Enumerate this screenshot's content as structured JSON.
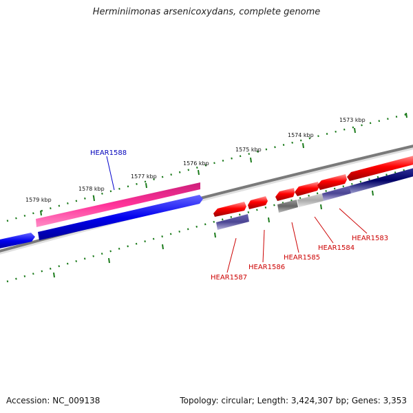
{
  "title": "Herminiimonas arsenicoxydans, complete genome",
  "footer": {
    "accession": "Accession: NC_009138",
    "summary": "Topology: circular; Length: 3,424,307 bp; Genes: 3,353"
  },
  "kbp_labels": [
    "1579 kbp",
    "1578 kbp",
    "1577 kbp",
    "1576 kbp",
    "1575 kbp",
    "1574 kbp",
    "1573 kbp"
  ],
  "gene_labels": {
    "hear1588": "HEAR1588",
    "hear1587": "HEAR1587",
    "hear1586": "HEAR1586",
    "hear1585": "HEAR1585",
    "hear1584": "HEAR1584",
    "hear1583": "HEAR1583"
  },
  "colors": {
    "red": "#dd0000",
    "pink": "#ff3399",
    "blue": "#0000ee",
    "navy": "#000066",
    "slate": "#4b4594",
    "gray": "#7a7a7a",
    "tick": "#1a7a1a"
  }
}
